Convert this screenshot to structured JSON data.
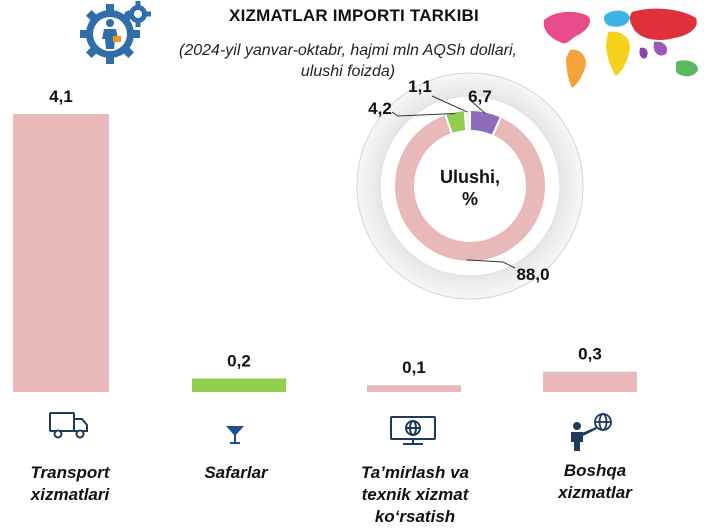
{
  "header": {
    "title": "XIZMATLAR IMPORTI TARKIBI",
    "subtitle_line1": "(2024-yil yanvar-oktabr, hajmi mln AQSh dollari,",
    "subtitle_line2": "ulushi foizda)"
  },
  "categories": [
    {
      "line1": "Transport",
      "line2": "xizmatlari",
      "line3": "",
      "icon": "truck-icon"
    },
    {
      "line1": "Safarlar",
      "line2": "",
      "line3": "",
      "icon": "cocktail-glass-icon"
    },
    {
      "line1": "Ta’mirlash va",
      "line2": "texnik xizmat",
      "line3": "ko‘rsatish",
      "icon": "monitor-globe-icon"
    },
    {
      "line1": "Boshqa",
      "line2": "xizmatlar",
      "line3": "",
      "icon": "person-globe-icon"
    }
  ],
  "donut_center": {
    "line1": "Ulushi,",
    "line2": "%"
  },
  "chart_data": [
    {
      "type": "bar",
      "categories": [
        "Transport xizmatlari",
        "Safarlar",
        "Ta’mirlash va texnik xizmat ko‘rsatish",
        "Boshqa xizmatlar"
      ],
      "values": [
        4.1,
        0.2,
        0.1,
        0.3
      ],
      "value_labels": [
        "4,1",
        "0,2",
        "0,1",
        "0,3"
      ],
      "colors": [
        "#e9b9b9",
        "#8fce4e",
        "#e9b9b9",
        "#e9b9b9"
      ],
      "ylim": [
        0,
        4.1
      ]
    },
    {
      "type": "pie",
      "style": "donut",
      "labels": [
        "Transport xizmatlari",
        "Safarlar",
        "Ta’mirlash va texnik xizmat ko‘rsatish",
        "Boshqa xizmatlar"
      ],
      "values": [
        88.0,
        4.2,
        1.1,
        6.7
      ],
      "value_labels": [
        "88,0",
        "4,2",
        "1,1",
        "6,7"
      ],
      "colors": [
        "#e9b9b9",
        "#8fce4e",
        "#f2f2f2",
        "#8f6ab8"
      ]
    }
  ]
}
